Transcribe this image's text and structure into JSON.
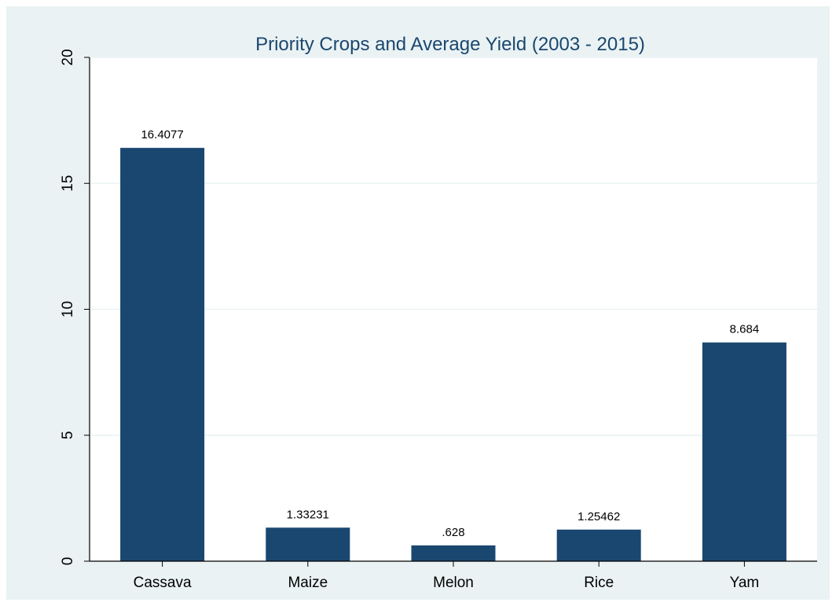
{
  "chart_data": {
    "type": "bar",
    "title": "Priority Crops and Average Yield (2003 - 2015)",
    "xlabel": "",
    "ylabel": "",
    "categories": [
      "Cassava",
      "Maize",
      "Melon",
      "Rice",
      "Yam"
    ],
    "values": [
      16.4077,
      1.33231,
      0.628,
      1.25462,
      8.684
    ],
    "value_labels": [
      "16.4077",
      "1.33231",
      ".628",
      "1.25462",
      "8.684"
    ],
    "ylim": [
      0,
      20
    ],
    "yticks": [
      0,
      5,
      10,
      15,
      20
    ],
    "ytick_labels": [
      "0",
      "5",
      "10",
      "15",
      "20"
    ],
    "grid": true,
    "legend": "none",
    "colors": {
      "bar": "#1a476f",
      "background": "#eaf2f3",
      "plot_background": "#ffffff",
      "grid": "#eaf2f3",
      "title": "#1a476f"
    }
  }
}
